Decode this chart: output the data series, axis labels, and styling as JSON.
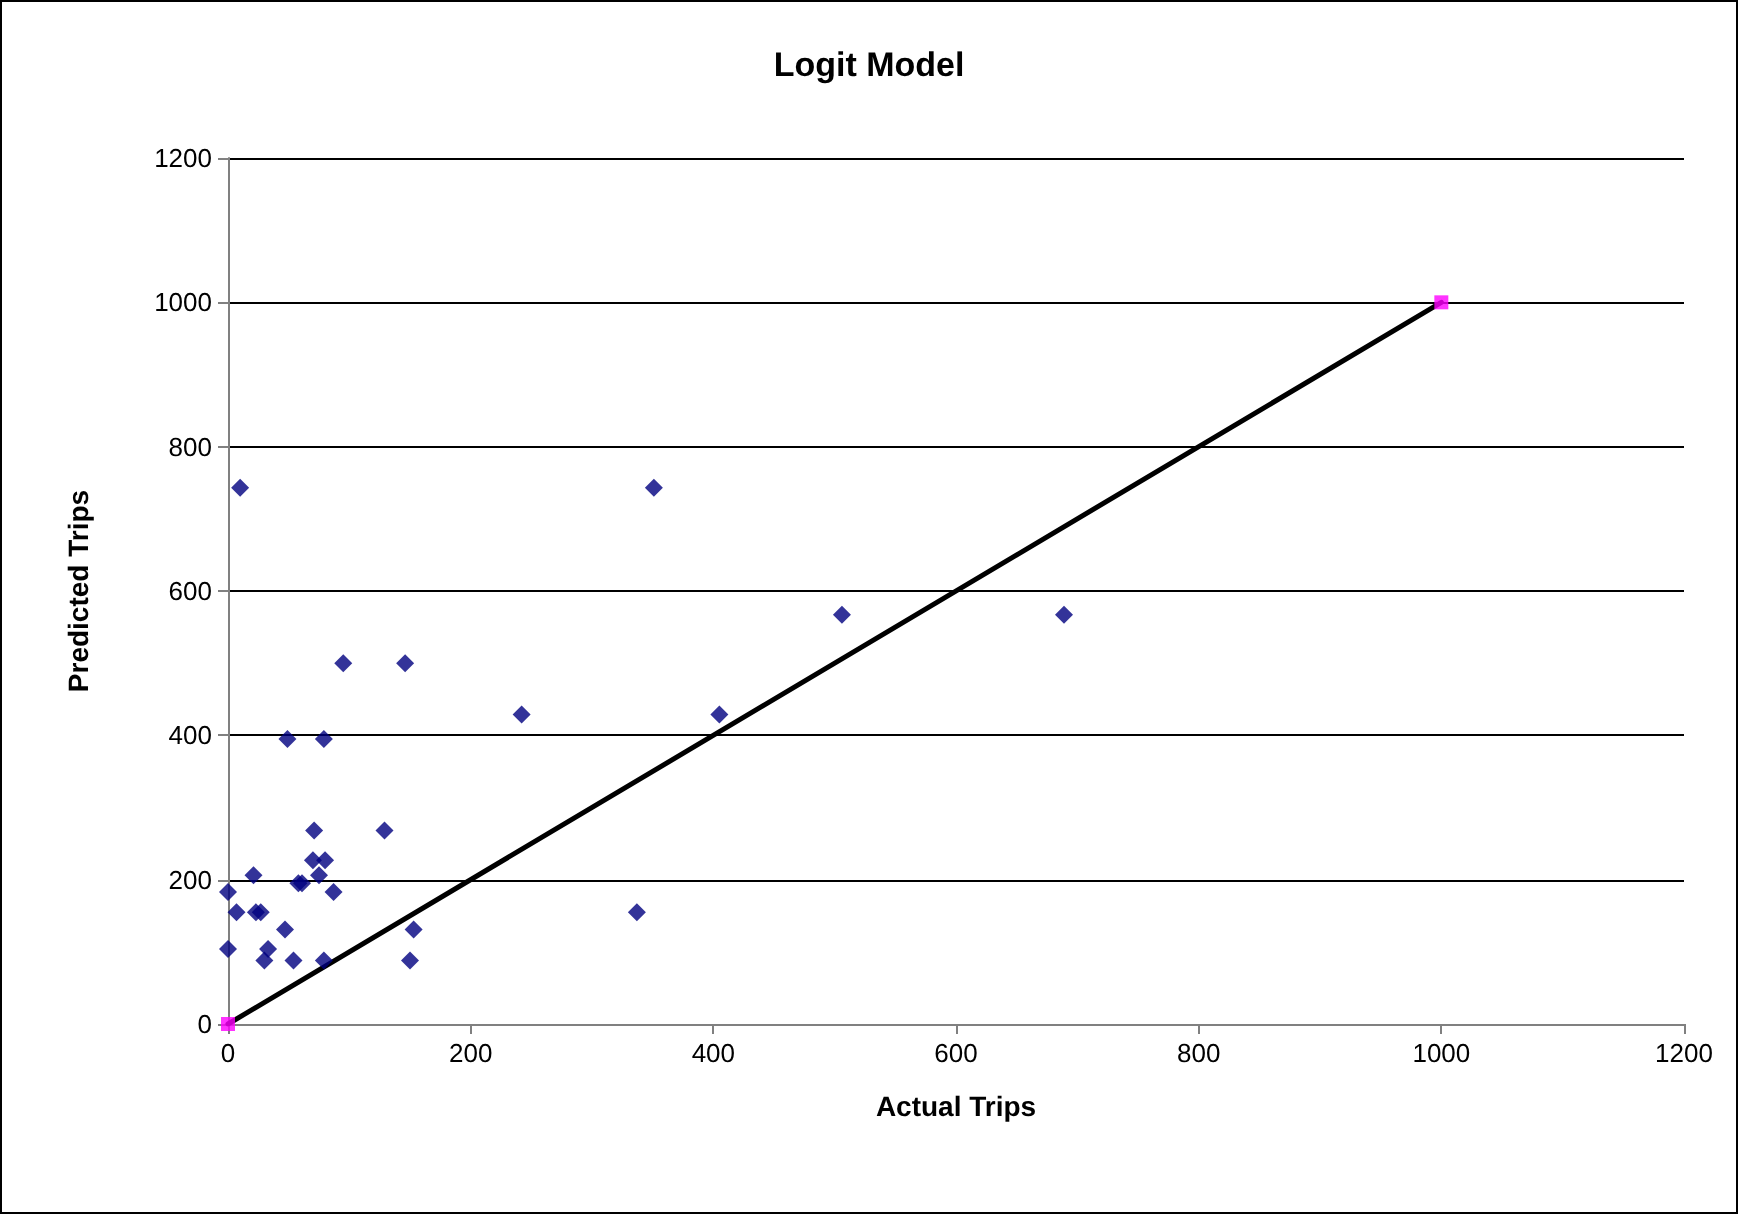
{
  "chart_data": {
    "type": "scatter",
    "title": "Logit Model",
    "xlabel": "Actual Trips",
    "ylabel": "Predicted Trips",
    "xlim": [
      0,
      1200
    ],
    "xticks": [
      0,
      200,
      400,
      600,
      800,
      1000,
      1200
    ],
    "ylim": [
      0,
      1200
    ],
    "yticks": [
      0,
      200,
      400,
      600,
      800,
      1000,
      1200
    ],
    "grid": "y",
    "marker": "diamond",
    "series": [
      {
        "color": "#000080",
        "x": [
          10,
          95,
          146,
          242,
          49,
          79,
          71,
          129,
          21,
          0,
          70,
          80,
          75,
          58,
          61,
          87,
          7,
          23,
          27,
          47,
          153,
          0,
          33,
          30,
          54,
          79,
          150,
          351,
          405,
          506,
          689,
          337
        ],
        "values": [
          743,
          500,
          500,
          429,
          395,
          395,
          268,
          268,
          206,
          183,
          227,
          227,
          206,
          195,
          195,
          183,
          155,
          155,
          155,
          131,
          131,
          104,
          104,
          88,
          88,
          88,
          88,
          743,
          429,
          567,
          567,
          155
        ]
      },
      {
        "type": "line",
        "color": "#000000",
        "marker": "none",
        "line_style": "solid",
        "x": [
          0,
          1000
        ],
        "values": [
          0,
          1000
        ]
      },
      {
        "type": "scatter",
        "color": "#ff00ff",
        "marker": "square",
        "x": [
          0,
          1000
        ],
        "values": [
          0,
          1000
        ]
      }
    ]
  }
}
